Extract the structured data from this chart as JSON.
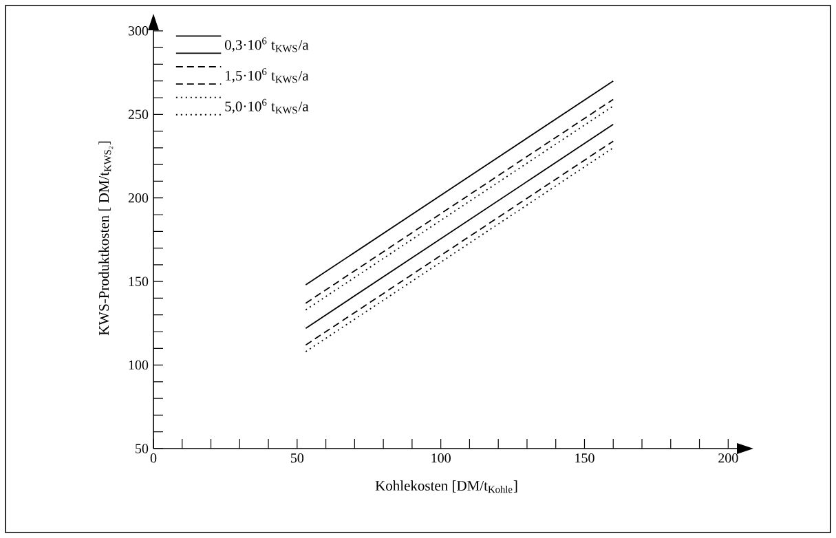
{
  "chart_data": {
    "type": "line",
    "xlabel": "Kohlekosten [DM/t$_{Kohle}$]",
    "ylabel": "KWS-Produktkosten [ DM/t$_{KWS₂}$]",
    "x": [
      53,
      160
    ],
    "xlim": [
      0,
      204
    ],
    "ylim": [
      50,
      302
    ],
    "xticks": [
      0,
      50,
      100,
      150,
      200
    ],
    "yticks": [
      50,
      100,
      150,
      200,
      250,
      300
    ],
    "legend": "top left",
    "grid": false,
    "series": [
      {
        "name": "0,3·10$^{6}$ t$_{KWS}$/a",
        "color": "#000000",
        "line_style": "solid",
        "values": [
          148,
          270
        ]
      },
      {
        "color": "#000000",
        "line_style": "solid",
        "values": [
          122,
          244
        ]
      },
      {
        "name": "1,5·10$^{6}$ t$_{KWS}$/a",
        "color": "#000000",
        "line_style": "dashed",
        "values": [
          137,
          259
        ]
      },
      {
        "color": "#000000",
        "line_style": "dashed",
        "values": [
          112,
          234
        ]
      },
      {
        "name": "5,0·10$^{6}$ t$_{KWS}$/a",
        "color": "#000000",
        "line_style": "dotted",
        "values": [
          133,
          255
        ]
      },
      {
        "color": "#000000",
        "line_style": "dotted",
        "values": [
          108,
          230
        ]
      }
    ]
  }
}
